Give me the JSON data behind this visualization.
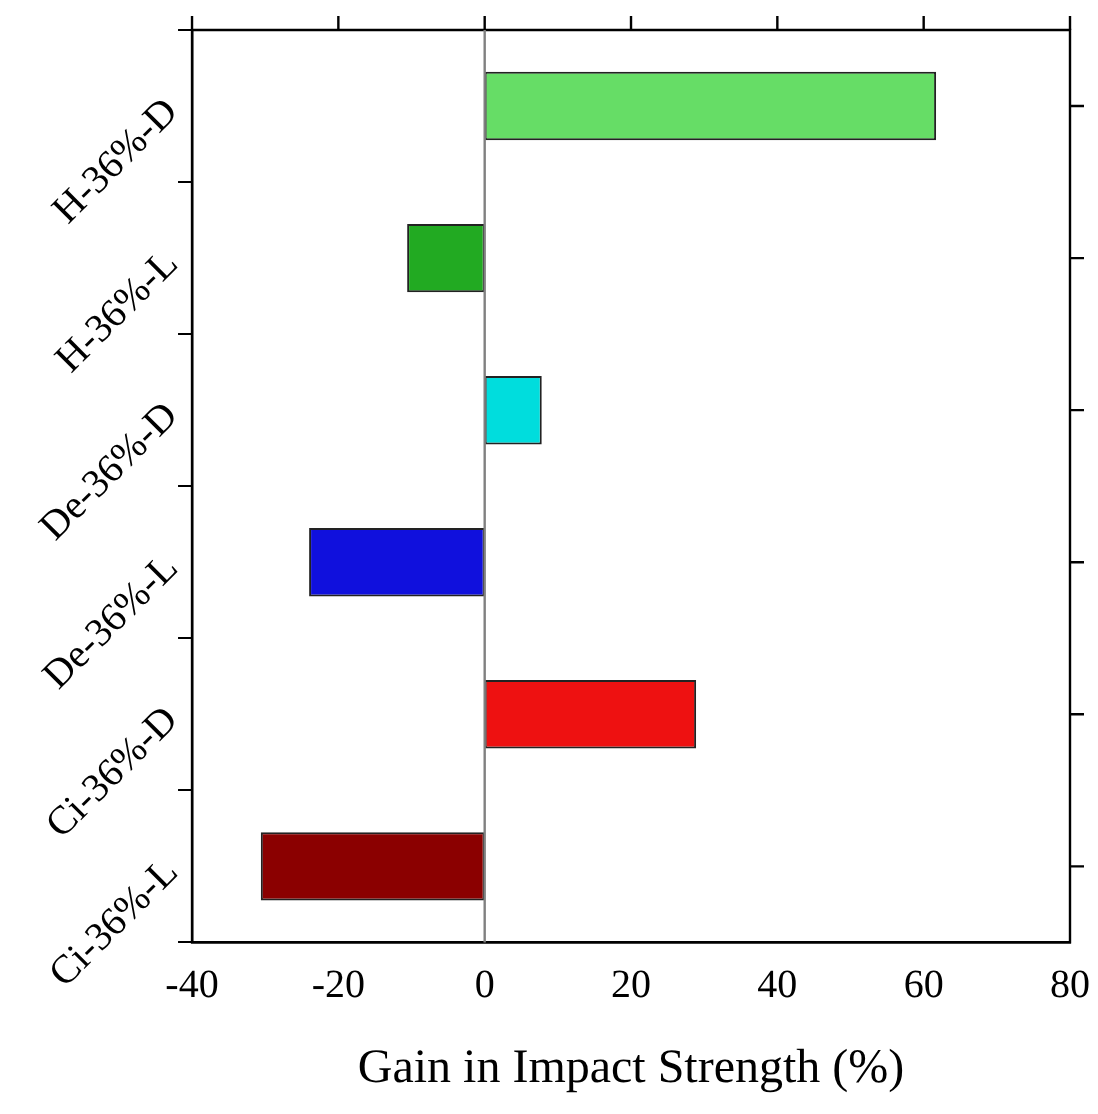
{
  "chart_data": {
    "type": "bar",
    "orientation": "horizontal",
    "xlabel": "Gain in Impact Strength (%)",
    "categories": [
      "H-36%-D",
      "H-36%-L",
      "De-36%-D",
      "De-36%-L",
      "Ci-36%-D",
      "Ci-36%-L"
    ],
    "values": [
      61.7,
      -10.6,
      7.8,
      -24,
      28.9,
      -30.6
    ],
    "colors": [
      "#66dd66",
      "#22aa22",
      "#00dddd",
      "#1010dd",
      "#ee1111",
      "#8b0000"
    ],
    "xlim": [
      -40,
      80
    ],
    "xticks": [
      -40,
      -20,
      0,
      20,
      40,
      60,
      80
    ],
    "ref_lines": [
      {
        "axis": "x",
        "value": 0,
        "color": "#808080"
      }
    ],
    "grid": false,
    "legend": false
  }
}
